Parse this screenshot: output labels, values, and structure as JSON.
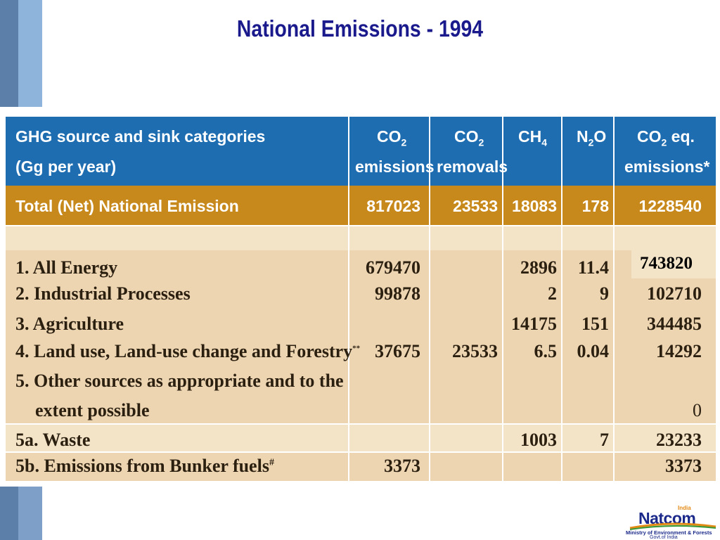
{
  "title": "National Emissions - 1994",
  "header": {
    "category_line1": "GHG source and sink categories",
    "category_line2": "(Gg per year)",
    "co2_emissions": [
      "CO",
      "2",
      "emissions"
    ],
    "co2_removals": [
      "CO",
      "2",
      "removals"
    ],
    "ch4": [
      "CH",
      "4"
    ],
    "n2o": [
      "N",
      "2",
      "O"
    ],
    "co2eq": [
      "CO",
      "2",
      " eq.",
      "emissions*"
    ]
  },
  "total_row": {
    "label": "Total (Net) National Emission",
    "co2_emissions": "817023",
    "co2_removals": "23533",
    "ch4": "18083",
    "n2o": "178",
    "co2eq": "1228540"
  },
  "rows": [
    {
      "label": "1. All Energy",
      "co2_emissions": "679470",
      "co2_removals": "",
      "ch4": "2896",
      "n2o": "11.4",
      "co2eq": ""
    },
    {
      "label": "2. Industrial Processes",
      "co2_emissions": "99878",
      "co2_removals": "",
      "ch4": "2",
      "n2o": "9",
      "co2eq": "102710"
    },
    {
      "label": "3. Agriculture",
      "co2_emissions": "",
      "co2_removals": "",
      "ch4": "14175",
      "n2o": "151",
      "co2eq": "344485"
    },
    {
      "label": "4. Land use, Land-use change and Forestry",
      "label_mark": "**",
      "co2_emissions": "37675",
      "co2_removals": "23533",
      "ch4": "6.5",
      "n2o": "0.04",
      "co2eq": "14292"
    },
    {
      "label": "5. Other sources as appropriate and to the",
      "label_line2": "extent possible",
      "co2_emissions": "",
      "co2_removals": "",
      "ch4": "",
      "n2o": "",
      "co2eq": "0"
    },
    {
      "label": "5a. Waste",
      "co2_emissions": "",
      "co2_removals": "",
      "ch4": "1003",
      "n2o": "7",
      "co2eq": "23233"
    },
    {
      "label": "5b. Emissions from Bunker fuels",
      "label_mark": "#",
      "co2_emissions": "3373",
      "co2_removals": "",
      "ch4": "",
      "n2o": "",
      "co2eq": "3373"
    }
  ],
  "callout": "743820",
  "logo": {
    "word": "Natcom",
    "tag": "India",
    "line1": "Ministry of Environment & Forests",
    "line2": "Govt.of India"
  },
  "colors": {
    "title": "#1a1a8c",
    "header_bg": "#1e6db1",
    "total_bg": "#c7891b",
    "body_bg": "#edd5b2",
    "body_bg_alt": "#f3e4c7",
    "accent_bars": "#5b7fa8"
  }
}
